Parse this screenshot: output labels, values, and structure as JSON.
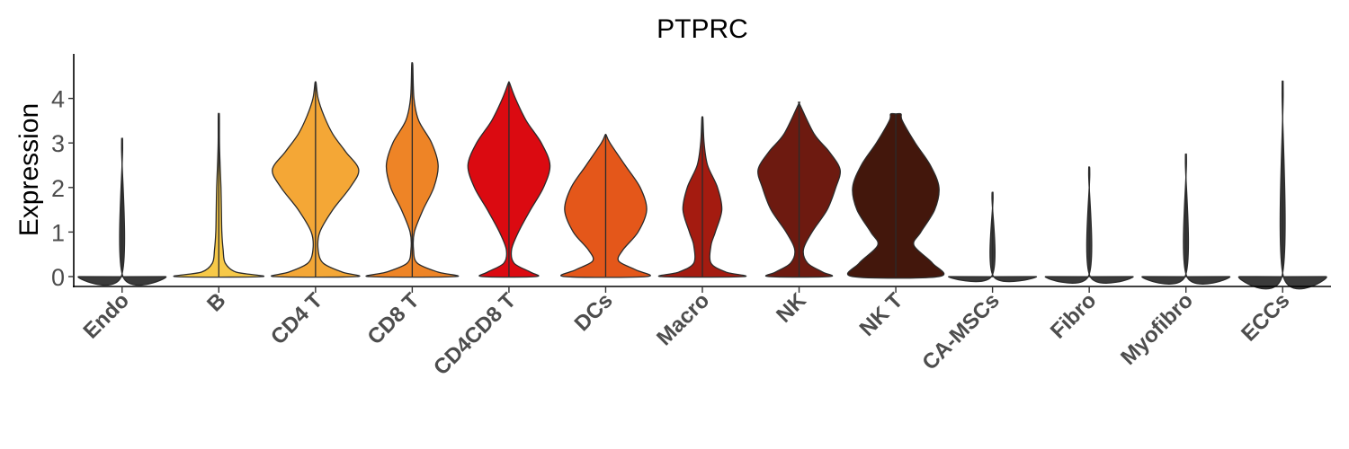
{
  "chart_data": {
    "type": "violin",
    "title": "PTPRC",
    "xlabel": "",
    "ylabel": "Expression",
    "ylim": [
      -0.25,
      5.0
    ],
    "yticks": [
      0,
      1,
      2,
      3,
      4
    ],
    "grid": false,
    "legend": "none",
    "categories": [
      "Endo",
      "B",
      "CD4 T",
      "CD8 T",
      "CD4CD8 T",
      "DCs",
      "Macro",
      "NK",
      "NK T",
      "CA-MSCs",
      "Fibro",
      "Myofibro",
      "ECCs"
    ],
    "violins": [
      {
        "category": "Endo",
        "color": "#3b3b3b",
        "max": 2.9,
        "profile": [
          [
            0,
            1.0
          ],
          [
            0.02,
            0.01
          ],
          [
            2.9,
            0.005
          ]
        ]
      },
      {
        "category": "B",
        "color": "#f7c948",
        "max": 3.62,
        "profile": [
          [
            0,
            1.0
          ],
          [
            0.1,
            0.4
          ],
          [
            0.3,
            0.15
          ],
          [
            0.6,
            0.1
          ],
          [
            1.0,
            0.07
          ],
          [
            1.5,
            0.06
          ],
          [
            2.0,
            0.05
          ],
          [
            2.5,
            0.03
          ],
          [
            3.0,
            0.015
          ],
          [
            3.62,
            0.005
          ]
        ]
      },
      {
        "category": "CD4 T",
        "color": "#f4a736",
        "max": 4.35,
        "profile": [
          [
            0,
            0.95
          ],
          [
            0.1,
            0.62
          ],
          [
            0.3,
            0.18
          ],
          [
            0.6,
            0.06
          ],
          [
            1.0,
            0.1
          ],
          [
            1.5,
            0.4
          ],
          [
            2.0,
            0.8
          ],
          [
            2.4,
            1.0
          ],
          [
            2.8,
            0.7
          ],
          [
            3.2,
            0.4
          ],
          [
            3.6,
            0.2
          ],
          [
            4.0,
            0.06
          ],
          [
            4.35,
            0.005
          ]
        ]
      },
      {
        "category": "CD8 T",
        "color": "#ee8426",
        "max": 4.75,
        "profile": [
          [
            0,
            1.0
          ],
          [
            0.1,
            0.6
          ],
          [
            0.3,
            0.12
          ],
          [
            0.6,
            0.03
          ],
          [
            1.0,
            0.05
          ],
          [
            1.5,
            0.25
          ],
          [
            2.0,
            0.5
          ],
          [
            2.5,
            0.6
          ],
          [
            3.0,
            0.45
          ],
          [
            3.5,
            0.15
          ],
          [
            4.0,
            0.04
          ],
          [
            4.75,
            0.005
          ]
        ]
      },
      {
        "category": "CD4CD8 T",
        "color": "#db0a11",
        "max": 4.35,
        "profile": [
          [
            0,
            0.62
          ],
          [
            0.1,
            0.5
          ],
          [
            0.3,
            0.12
          ],
          [
            0.6,
            0.06
          ],
          [
            1.0,
            0.22
          ],
          [
            1.5,
            0.5
          ],
          [
            2.0,
            0.8
          ],
          [
            2.5,
            0.95
          ],
          [
            3.0,
            0.75
          ],
          [
            3.5,
            0.4
          ],
          [
            4.0,
            0.15
          ],
          [
            4.35,
            0.005
          ]
        ]
      },
      {
        "category": "DCs",
        "color": "#e4571a",
        "max": 3.18,
        "profile": [
          [
            0,
            0.95
          ],
          [
            0.15,
            0.7
          ],
          [
            0.35,
            0.3
          ],
          [
            0.6,
            0.4
          ],
          [
            1.0,
            0.75
          ],
          [
            1.5,
            0.95
          ],
          [
            2.0,
            0.8
          ],
          [
            2.5,
            0.45
          ],
          [
            3.0,
            0.1
          ],
          [
            3.18,
            0.005
          ]
        ]
      },
      {
        "category": "Macro",
        "color": "#a41b10",
        "max": 3.55,
        "profile": [
          [
            0,
            0.95
          ],
          [
            0.1,
            0.55
          ],
          [
            0.3,
            0.2
          ],
          [
            0.7,
            0.2
          ],
          [
            1.0,
            0.3
          ],
          [
            1.5,
            0.45
          ],
          [
            2.0,
            0.35
          ],
          [
            2.5,
            0.12
          ],
          [
            3.0,
            0.04
          ],
          [
            3.55,
            0.005
          ]
        ]
      },
      {
        "category": "NK",
        "color": "#6d1a10",
        "max": 3.87,
        "profile": [
          [
            0,
            0.7
          ],
          [
            0.1,
            0.55
          ],
          [
            0.3,
            0.2
          ],
          [
            0.6,
            0.1
          ],
          [
            1.0,
            0.3
          ],
          [
            1.5,
            0.65
          ],
          [
            2.0,
            0.85
          ],
          [
            2.4,
            0.95
          ],
          [
            2.8,
            0.7
          ],
          [
            3.2,
            0.35
          ],
          [
            3.87,
            0.005
          ]
        ]
      },
      {
        "category": "NK T",
        "color": "#43170c",
        "max": 3.65,
        "profile": [
          [
            0,
            1.0
          ],
          [
            0.3,
            0.85
          ],
          [
            0.7,
            0.42
          ],
          [
            1.0,
            0.58
          ],
          [
            1.5,
            0.9
          ],
          [
            2.0,
            1.0
          ],
          [
            2.5,
            0.8
          ],
          [
            3.0,
            0.45
          ],
          [
            3.5,
            0.15
          ],
          [
            3.65,
            0.12
          ]
        ]
      },
      {
        "category": "CA-MSCs",
        "color": "#3b3b3b",
        "max": 1.77,
        "profile": [
          [
            0,
            1.0
          ],
          [
            0.02,
            0.01
          ],
          [
            1.77,
            0.005
          ]
        ]
      },
      {
        "category": "Fibro",
        "color": "#3b3b3b",
        "max": 2.3,
        "profile": [
          [
            0,
            1.0
          ],
          [
            0.02,
            0.01
          ],
          [
            2.3,
            0.005
          ]
        ]
      },
      {
        "category": "Myofibro",
        "color": "#3b3b3b",
        "max": 2.57,
        "profile": [
          [
            0,
            1.0
          ],
          [
            0.02,
            0.01
          ],
          [
            2.57,
            0.005
          ]
        ]
      },
      {
        "category": "ECCs",
        "color": "#3b3b3b",
        "max": 4.1,
        "profile": [
          [
            0,
            1.0
          ],
          [
            0.02,
            0.01
          ],
          [
            4.1,
            0.005
          ]
        ]
      }
    ]
  }
}
